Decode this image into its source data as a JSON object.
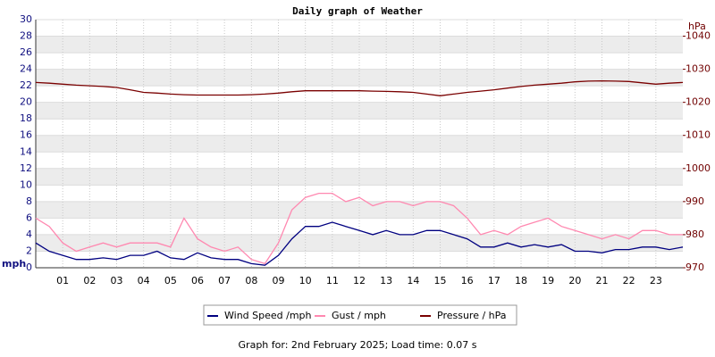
{
  "chart_data": {
    "type": "line",
    "title": "Daily graph of Weather",
    "y_label": "mph",
    "y2_label": "hPa",
    "footer": "Graph for: 2nd February 2025; Load time: 0.07 s",
    "x": [
      0,
      0.5,
      1,
      1.5,
      2,
      2.5,
      3,
      3.5,
      4,
      4.5,
      5,
      5.5,
      6,
      6.5,
      7,
      7.5,
      8,
      8.5,
      9,
      9.5,
      10,
      10.5,
      11,
      11.5,
      12,
      12.5,
      13,
      13.5,
      14,
      14.5,
      15,
      15.5,
      16,
      16.5,
      17,
      17.5,
      18,
      18.5,
      19,
      19.5,
      20,
      20.5,
      21,
      21.5,
      22,
      22.5,
      23,
      23.5,
      24
    ],
    "xlim": [
      0,
      24
    ],
    "xticks": [
      {
        "value": 1,
        "label": "01"
      },
      {
        "value": 2,
        "label": "02"
      },
      {
        "value": 3,
        "label": "03"
      },
      {
        "value": 4,
        "label": "04"
      },
      {
        "value": 5,
        "label": "05"
      },
      {
        "value": 6,
        "label": "06"
      },
      {
        "value": 7,
        "label": "07"
      },
      {
        "value": 8,
        "label": "08"
      },
      {
        "value": 9,
        "label": "09"
      },
      {
        "value": 10,
        "label": "10"
      },
      {
        "value": 11,
        "label": "11"
      },
      {
        "value": 12,
        "label": "12"
      },
      {
        "value": 13,
        "label": "13"
      },
      {
        "value": 14,
        "label": "14"
      },
      {
        "value": 15,
        "label": "15"
      },
      {
        "value": 16,
        "label": "16"
      },
      {
        "value": 17,
        "label": "17"
      },
      {
        "value": 18,
        "label": "18"
      },
      {
        "value": 19,
        "label": "19"
      },
      {
        "value": 20,
        "label": "20"
      },
      {
        "value": 21,
        "label": "21"
      },
      {
        "value": 22,
        "label": "22"
      },
      {
        "value": 23,
        "label": "23"
      }
    ],
    "ylim": [
      0,
      30
    ],
    "yticks": [
      0,
      2,
      4,
      6,
      8,
      10,
      12,
      14,
      16,
      18,
      20,
      22,
      24,
      26,
      28,
      30
    ],
    "y2lim": [
      970,
      1045
    ],
    "y2ticks": [
      970,
      980,
      990,
      1000,
      1010,
      1020,
      1030,
      1040
    ],
    "grid": "bands",
    "legend": "bottom",
    "series": [
      {
        "name": "Wind Speed /mph",
        "color": "#000080",
        "values": [
          3,
          2,
          1.5,
          1,
          1,
          1.2,
          1,
          1.5,
          1.5,
          2,
          1.2,
          1,
          1.8,
          1.2,
          1,
          1,
          0.5,
          0.3,
          1.5,
          3.5,
          5,
          5,
          5.5,
          5,
          4.5,
          4,
          4.5,
          4,
          4,
          4.5,
          4.5,
          4,
          3.5,
          2.5,
          2.5,
          3,
          2.5,
          2.8,
          2.5,
          2.8,
          2,
          2,
          1.8,
          2.2,
          2.2,
          2.5,
          2.5,
          2.2,
          2.5
        ]
      },
      {
        "name": "Gust / mph",
        "color": "#ff88b0",
        "values": [
          6,
          5,
          3,
          2,
          2.5,
          3,
          2.5,
          3,
          3,
          3,
          2.5,
          6,
          3.5,
          2.5,
          2,
          2.5,
          1,
          0.5,
          3,
          7,
          8.5,
          9,
          9,
          8,
          8.5,
          7.5,
          8,
          8,
          7.5,
          8,
          8,
          7.5,
          6,
          4,
          4.5,
          4,
          5,
          5.5,
          6,
          5,
          4.5,
          4,
          3.5,
          4,
          3.5,
          4.5,
          4.5,
          4,
          4
        ]
      },
      {
        "name": "Pressure / hPa",
        "color": "#7a0000",
        "axis": "y2",
        "values": [
          1026,
          1025.8,
          1025.5,
          1025.2,
          1025,
          1024.8,
          1024.5,
          1023.8,
          1023,
          1022.8,
          1022.5,
          1022.3,
          1022.2,
          1022.2,
          1022.2,
          1022.2,
          1022.3,
          1022.5,
          1022.8,
          1023.2,
          1023.5,
          1023.5,
          1023.5,
          1023.5,
          1023.5,
          1023.4,
          1023.3,
          1023.2,
          1023,
          1022.5,
          1022,
          1022.5,
          1023,
          1023.4,
          1023.8,
          1024.3,
          1024.8,
          1025.2,
          1025.5,
          1025.8,
          1026.2,
          1026.4,
          1026.5,
          1026.4,
          1026.3,
          1025.9,
          1025.5,
          1025.8,
          1026
        ]
      }
    ]
  }
}
